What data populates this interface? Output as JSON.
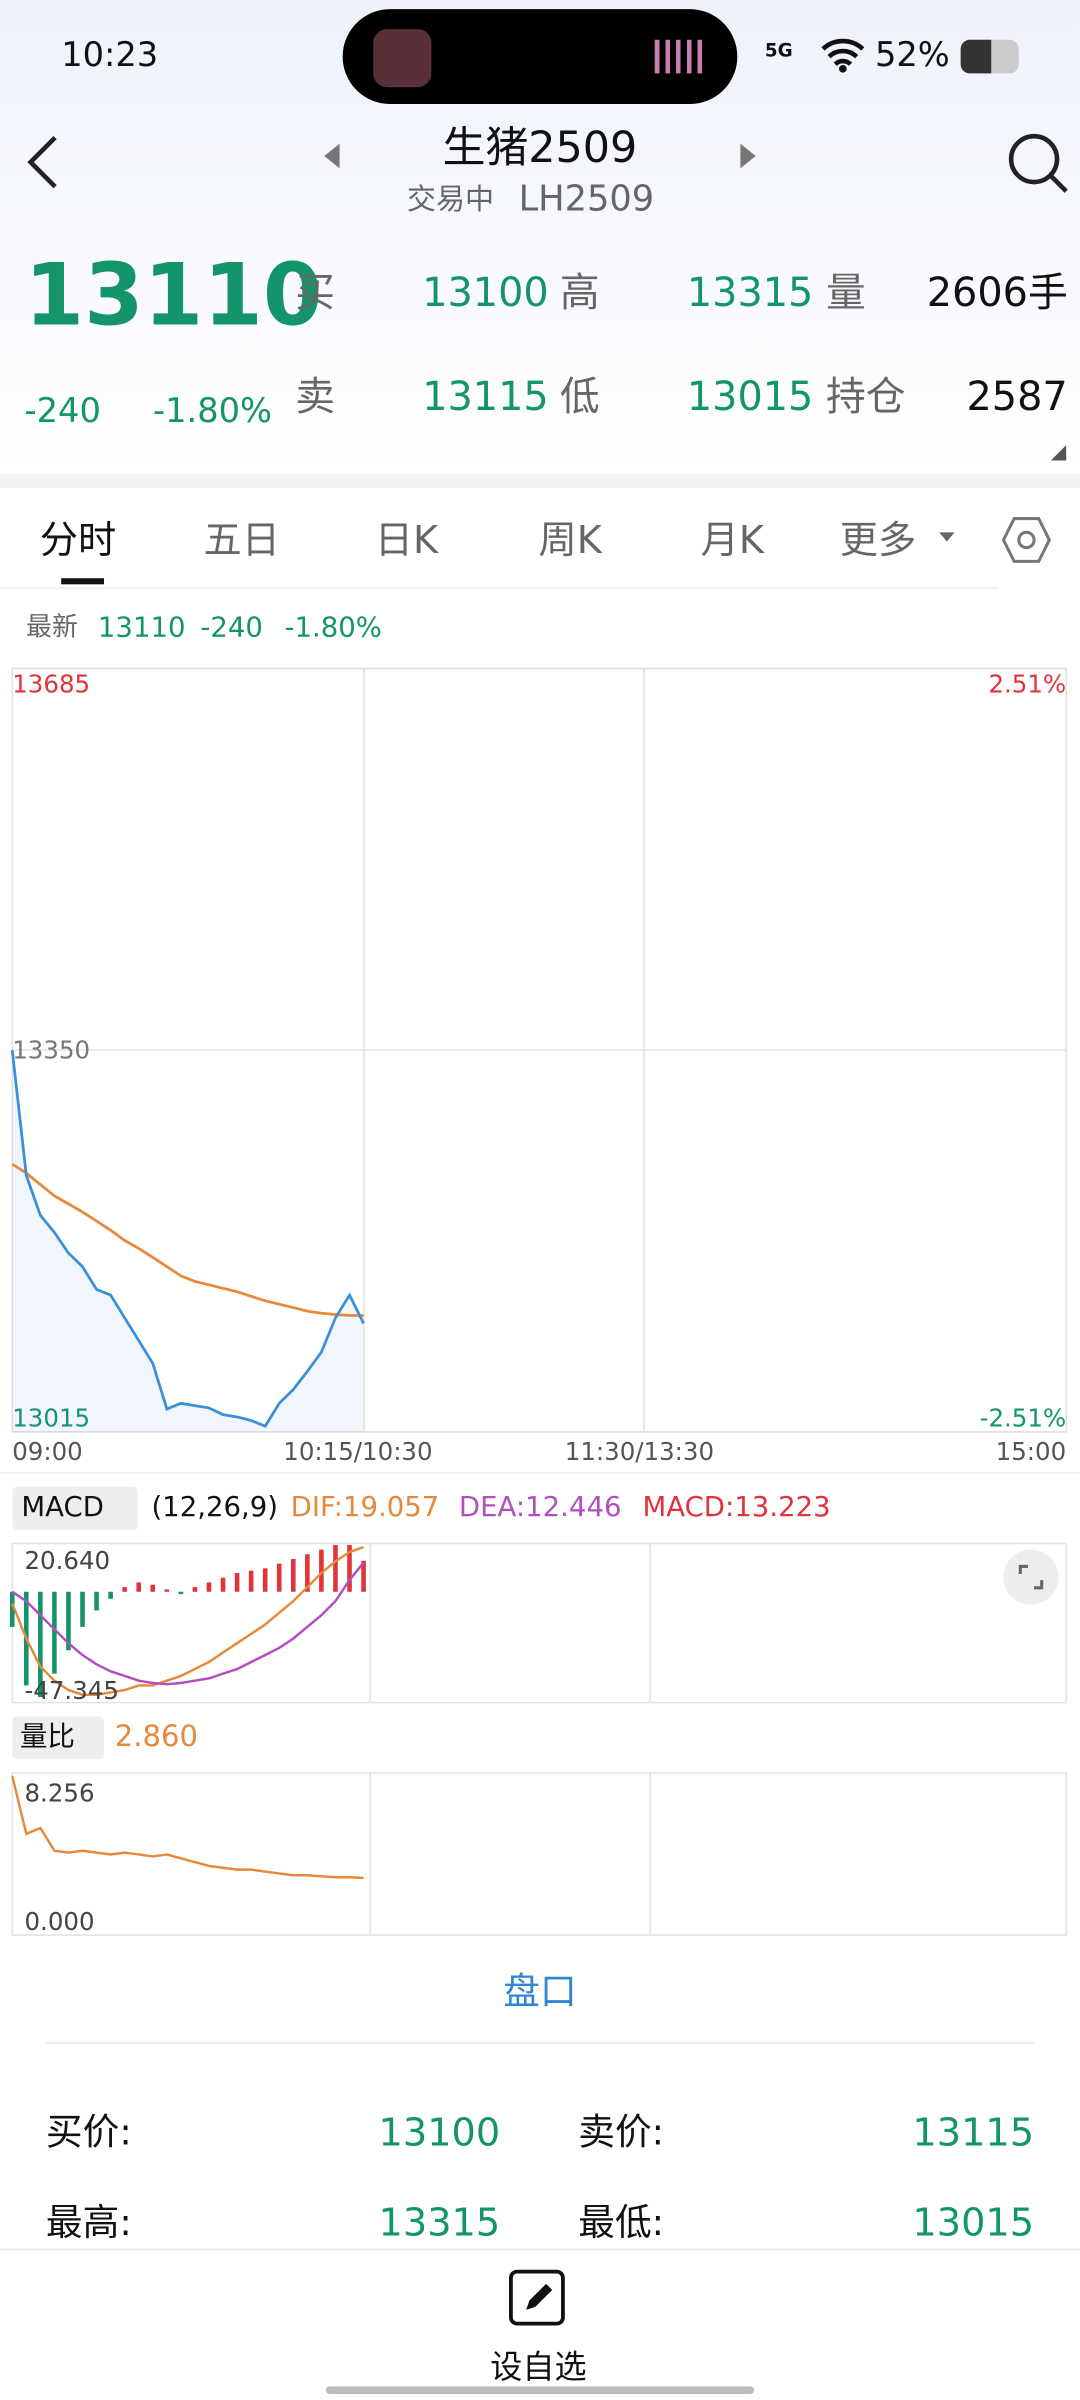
{
  "status_bar": {
    "time": "10:23",
    "network": "5G",
    "battery": "52%"
  },
  "header": {
    "title": "生猪2509",
    "trading_status": "交易中",
    "code": "LH2509"
  },
  "quote": {
    "last": "13110",
    "change": "-240",
    "change_pct": "-1.80%",
    "bid_label": "买",
    "bid": "13100",
    "high_label": "高",
    "high": "13315",
    "volume_label": "量",
    "volume": "2606手",
    "ask_label": "卖",
    "ask": "13115",
    "low_label": "低",
    "low": "13015",
    "open_interest_label": "持仓",
    "open_interest": "2587"
  },
  "tabs": [
    "分时",
    "五日",
    "日K",
    "周K",
    "月K",
    "更多"
  ],
  "latest": {
    "label": "最新",
    "price": "13110",
    "change": "-240",
    "change_pct": "-1.80%"
  },
  "price_chart": {
    "type": "line",
    "ylim": [
      13015,
      13685
    ],
    "yticks": [
      13015,
      13350,
      13685
    ],
    "y2lim": [
      -2.51,
      2.51
    ],
    "y2ticks": [
      {
        "value": -2.51,
        "label": "-2.51%"
      },
      {
        "value": 2.51,
        "label": "2.51%"
      }
    ],
    "x_labels": [
      "09:00",
      "10:15/10:30",
      "11:30/13:30",
      "15:00"
    ],
    "price_color": "#3a8fdb",
    "price_values": [
      13350,
      13240,
      13205,
      13190,
      13172,
      13160,
      13140,
      13135,
      13115,
      13095,
      13075,
      13035,
      13040,
      13038,
      13036,
      13030,
      13028,
      13025,
      13020,
      13040,
      13052,
      13068,
      13085,
      13115,
      13135,
      13110
    ],
    "average_color": "#e8883a",
    "average_values": [
      13250,
      13242,
      13232,
      13222,
      13215,
      13208,
      13200,
      13192,
      13183,
      13176,
      13168,
      13160,
      13152,
      13147,
      13144,
      13141,
      13138,
      13134,
      13130,
      13127,
      13124,
      13121,
      13119,
      13118,
      13117,
      13117
    ]
  },
  "macd_chart": {
    "type": "macd",
    "label": "MACD",
    "params": "(12,26,9)",
    "dif_label": "DIF:19.057",
    "dea_label": "DEA:12.446",
    "macd_label": "MACD:13.223",
    "ylim": [
      -47.345,
      20.64
    ],
    "yticks": [
      -47.345,
      {
        "value": 20.64,
        "label": "20.640"
      }
    ],
    "dif_color": "#e8883a",
    "dif_values": [
      -5,
      -20,
      -32,
      -38,
      -42,
      -44,
      -44,
      -43,
      -42,
      -40,
      -40,
      -38,
      -36,
      -33,
      -30,
      -26,
      -22,
      -18,
      -14,
      -9,
      -4,
      2,
      8,
      13,
      17,
      19.057
    ],
    "dea_color": "#b24fbf",
    "dea_values": [
      0,
      -4,
      -10,
      -16,
      -22,
      -27,
      -31,
      -34,
      -36,
      -38,
      -39,
      -39.5,
      -39,
      -38,
      -37,
      -35,
      -33,
      -30,
      -27,
      -24,
      -20,
      -15,
      -10,
      -4,
      5,
      12.446
    ],
    "bar_values": [
      -15,
      -40,
      -45,
      -35,
      -25,
      -15,
      -8,
      -3,
      2,
      4,
      3,
      1,
      -1,
      2,
      4,
      6,
      8,
      9,
      10,
      12,
      14,
      16,
      18,
      20,
      20,
      13.223
    ],
    "up_color": "#e0333a",
    "down_color": "#14946a"
  },
  "volume_ratio_chart": {
    "type": "line",
    "label": "量比",
    "value": "2.860",
    "ylim": [
      0,
      8.256
    ],
    "yticks": [
      {
        "value": 0,
        "label": "0.000"
      },
      8.256
    ],
    "color": "#e8883a",
    "values": [
      8.256,
      5.2,
      5.5,
      4.3,
      4.2,
      4.3,
      4.2,
      4.1,
      4.2,
      4.1,
      4.0,
      4.1,
      3.9,
      3.7,
      3.5,
      3.4,
      3.3,
      3.3,
      3.2,
      3.1,
      3.0,
      3.0,
      2.95,
      2.9,
      2.9,
      2.86
    ]
  },
  "order_book": {
    "title": "盘口",
    "rows": [
      [
        "买价:",
        "13100",
        "卖价:",
        "13115"
      ],
      [
        "最高:",
        "13315",
        "最低:",
        "13015"
      ]
    ]
  },
  "footer": {
    "button": "设自选"
  }
}
